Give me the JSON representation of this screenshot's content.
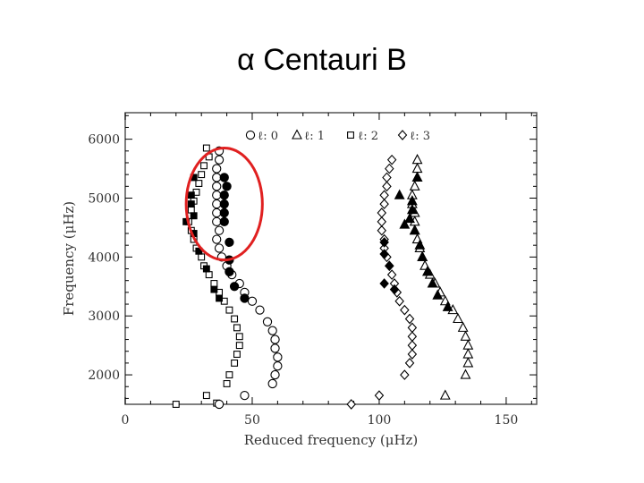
{
  "slide": {
    "title": "α Centauri B"
  },
  "chart_data": {
    "type": "scatter",
    "title": "α Centauri B",
    "xlabel": "Reduced frequency (μHz)",
    "ylabel": "Frequency (μHz)",
    "xlim": [
      0,
      162
    ],
    "ylim": [
      1500,
      6450
    ],
    "xticks": [
      0,
      50,
      100,
      150
    ],
    "xtick_labels": [
      "0",
      "50",
      "100",
      "150"
    ],
    "yticks": [
      2000,
      3000,
      4000,
      5000,
      6000
    ],
    "ytick_labels": [
      "2000",
      "3000",
      "4000",
      "5000",
      "6000"
    ],
    "legend": {
      "placement": "top",
      "entries": [
        {
          "marker": "circle",
          "label": "ℓ: 0"
        },
        {
          "marker": "triangle",
          "label": "ℓ: 1"
        },
        {
          "marker": "square",
          "label": "ℓ: 2"
        },
        {
          "marker": "diamond",
          "label": "ℓ: 3"
        }
      ]
    },
    "annotation": {
      "type": "ellipse",
      "color": "#e02020",
      "x_center": 39,
      "y_center": 4900,
      "x_halfwidth": 15,
      "y_halfheight": 950
    },
    "series": [
      {
        "marker": "square",
        "fill": "open",
        "points": [
          [
            32,
            5850
          ],
          [
            33,
            5700
          ],
          [
            31,
            5550
          ],
          [
            30,
            5400
          ],
          [
            29,
            5250
          ],
          [
            28,
            5100
          ],
          [
            27,
            4950
          ],
          [
            26,
            4800
          ],
          [
            25,
            4600
          ],
          [
            26,
            4450
          ],
          [
            27,
            4300
          ],
          [
            28,
            4150
          ],
          [
            30,
            4000
          ],
          [
            31,
            3850
          ],
          [
            33,
            3700
          ],
          [
            35,
            3550
          ],
          [
            37,
            3400
          ],
          [
            39,
            3250
          ],
          [
            41,
            3100
          ],
          [
            43,
            2950
          ],
          [
            44,
            2800
          ],
          [
            45,
            2650
          ],
          [
            45,
            2500
          ],
          [
            44,
            2350
          ],
          [
            43,
            2200
          ],
          [
            41,
            2000
          ],
          [
            40,
            1850
          ],
          [
            32,
            1650
          ],
          [
            36,
            1520
          ],
          [
            20,
            1500
          ]
        ]
      },
      {
        "marker": "square",
        "fill": "filled",
        "points": [
          [
            27,
            5350
          ],
          [
            26,
            5050
          ],
          [
            26,
            4900
          ],
          [
            27,
            4700
          ],
          [
            24,
            4600
          ],
          [
            27,
            4400
          ],
          [
            29,
            4100
          ],
          [
            32,
            3800
          ],
          [
            35,
            3450
          ],
          [
            37,
            3300
          ]
        ]
      },
      {
        "marker": "circle",
        "fill": "open",
        "points": [
          [
            37,
            5800
          ],
          [
            37,
            5650
          ],
          [
            36,
            5500
          ],
          [
            36,
            5350
          ],
          [
            36,
            5200
          ],
          [
            36,
            5050
          ],
          [
            36,
            4900
          ],
          [
            36,
            4750
          ],
          [
            36,
            4600
          ],
          [
            37,
            4450
          ],
          [
            36,
            4300
          ],
          [
            37,
            4150
          ],
          [
            38,
            4000
          ],
          [
            40,
            3850
          ],
          [
            42,
            3700
          ],
          [
            45,
            3550
          ],
          [
            47,
            3400
          ],
          [
            50,
            3250
          ],
          [
            53,
            3100
          ],
          [
            56,
            2900
          ],
          [
            58,
            2750
          ],
          [
            59,
            2600
          ],
          [
            59,
            2450
          ],
          [
            60,
            2300
          ],
          [
            60,
            2150
          ],
          [
            59,
            2000
          ],
          [
            58,
            1850
          ],
          [
            47,
            1650
          ],
          [
            37,
            1500
          ]
        ]
      },
      {
        "marker": "circle",
        "fill": "filled",
        "points": [
          [
            39,
            5350
          ],
          [
            40,
            5200
          ],
          [
            39,
            5050
          ],
          [
            39,
            4900
          ],
          [
            39,
            4750
          ],
          [
            39,
            4600
          ],
          [
            41,
            4250
          ],
          [
            41,
            3950
          ],
          [
            41,
            3750
          ],
          [
            43,
            3500
          ],
          [
            47,
            3300
          ]
        ]
      },
      {
        "marker": "diamond",
        "fill": "open",
        "points": [
          [
            105,
            5650
          ],
          [
            104,
            5500
          ],
          [
            103,
            5350
          ],
          [
            103,
            5200
          ],
          [
            102,
            5050
          ],
          [
            102,
            4900
          ],
          [
            101,
            4750
          ],
          [
            101,
            4600
          ],
          [
            101,
            4450
          ],
          [
            102,
            4300
          ],
          [
            102,
            4150
          ],
          [
            103,
            4000
          ],
          [
            104,
            3850
          ],
          [
            105,
            3700
          ],
          [
            106,
            3550
          ],
          [
            107,
            3400
          ],
          [
            108,
            3250
          ],
          [
            110,
            3100
          ],
          [
            112,
            2950
          ],
          [
            113,
            2800
          ],
          [
            113,
            2650
          ],
          [
            113,
            2500
          ],
          [
            113,
            2350
          ],
          [
            112,
            2200
          ],
          [
            110,
            2000
          ],
          [
            100,
            1650
          ],
          [
            89,
            1500
          ]
        ]
      },
      {
        "marker": "diamond",
        "fill": "filled",
        "points": [
          [
            102,
            4250
          ],
          [
            102,
            4050
          ],
          [
            104,
            3850
          ],
          [
            102,
            3550
          ],
          [
            106,
            3450
          ]
        ]
      },
      {
        "marker": "triangle",
        "fill": "open",
        "points": [
          [
            115,
            5650
          ],
          [
            115,
            5500
          ],
          [
            115,
            5350
          ],
          [
            114,
            5200
          ],
          [
            113,
            5050
          ],
          [
            113,
            4900
          ],
          [
            114,
            4750
          ],
          [
            114,
            4600
          ],
          [
            114,
            4450
          ],
          [
            115,
            4300
          ],
          [
            116,
            4150
          ],
          [
            117,
            4000
          ],
          [
            118,
            3850
          ],
          [
            120,
            3700
          ],
          [
            122,
            3550
          ],
          [
            124,
            3400
          ],
          [
            126,
            3250
          ],
          [
            129,
            3100
          ],
          [
            131,
            2950
          ],
          [
            133,
            2800
          ],
          [
            134,
            2650
          ],
          [
            135,
            2500
          ],
          [
            135,
            2350
          ],
          [
            135,
            2200
          ],
          [
            134,
            2000
          ],
          [
            126,
            1650
          ]
        ]
      },
      {
        "marker": "triangle",
        "fill": "filled",
        "points": [
          [
            115,
            5350
          ],
          [
            108,
            5050
          ],
          [
            113,
            4950
          ],
          [
            113,
            4800
          ],
          [
            112,
            4650
          ],
          [
            110,
            4550
          ],
          [
            114,
            4450
          ],
          [
            116,
            4200
          ],
          [
            117,
            4000
          ],
          [
            119,
            3750
          ],
          [
            121,
            3550
          ],
          [
            123,
            3350
          ],
          [
            127,
            3150
          ]
        ]
      }
    ]
  },
  "colors": {
    "ink": "#000000",
    "highlight": "#e02020",
    "frame": "#555555"
  }
}
